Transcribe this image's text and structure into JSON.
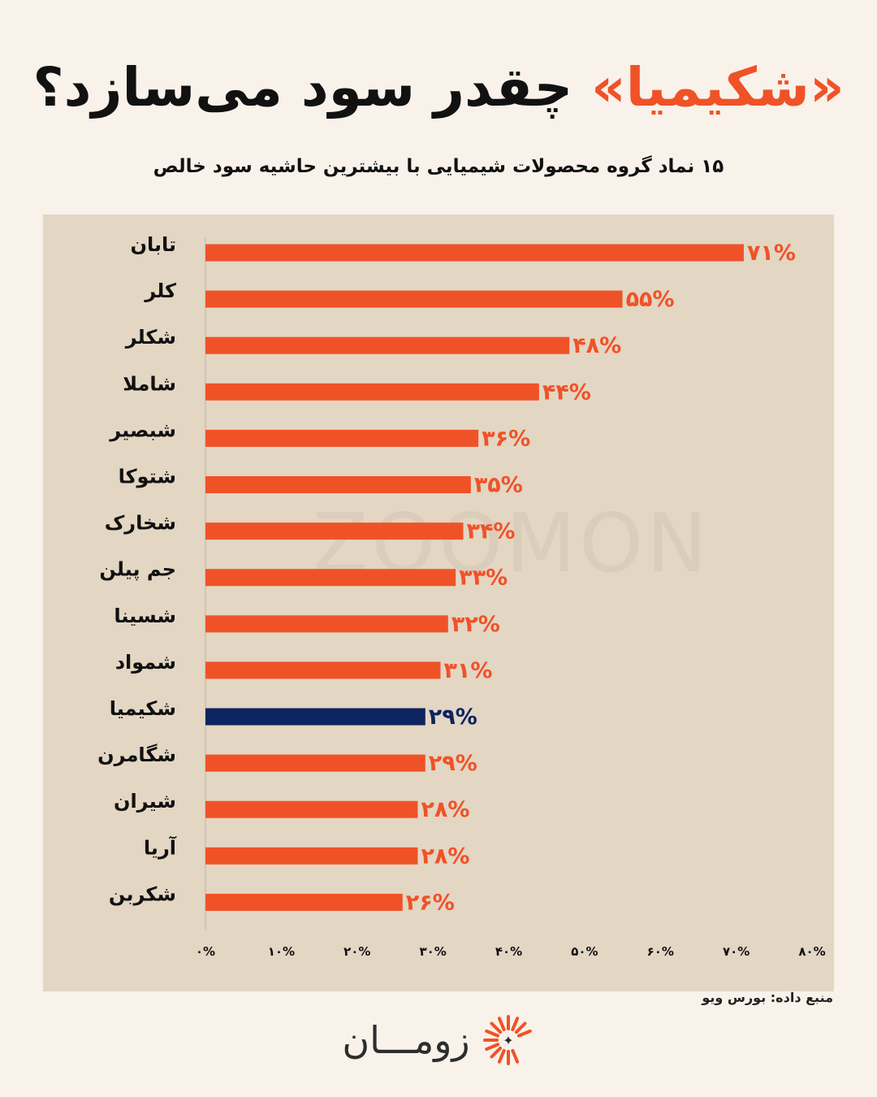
{
  "header": {
    "title_highlight": "«شکیمیا»",
    "title_rest": " چقدر سود می‌سازد؟",
    "subtitle": "۱۵ نماد گروه محصولات شیمیایی با بیشترین حاشیه سود خالص"
  },
  "watermark": "ZOOMON",
  "colors": {
    "bar": "#f05228",
    "highlight": "#0e2460",
    "background": "#f8f2ea",
    "panel": "#e3d6c3"
  },
  "chart_data": {
    "type": "bar",
    "orientation": "horizontal",
    "categories": [
      "تابان",
      "کلر",
      "شکلر",
      "شاملا",
      "شبصیر",
      "شتوکا",
      "شخارک",
      "جم پیلن",
      "شسینا",
      "شمواد",
      "شکیمیا",
      "شگامرن",
      "شیران",
      "آریا",
      "شکربن"
    ],
    "values": [
      71,
      55,
      48,
      44,
      36,
      35,
      34,
      33,
      32,
      31,
      29,
      29,
      28,
      28,
      26
    ],
    "value_labels": [
      "۷۱%",
      "۵۵%",
      "۴۸%",
      "۴۴%",
      "۳۶%",
      "۳۵%",
      "۳۴%",
      "۳۳%",
      "۳۲%",
      "۳۱%",
      "۲۹%",
      "۲۹%",
      "۲۸%",
      "۲۸%",
      "۲۶%"
    ],
    "highlight_category": "شکیمیا",
    "xlim": [
      0,
      80
    ],
    "xticks": [
      0,
      10,
      20,
      30,
      40,
      50,
      60,
      70,
      80
    ],
    "xtick_labels": [
      "۰%",
      "۱۰%",
      "۲۰%",
      "۳۰%",
      "۴۰%",
      "۵۰%",
      "۶۰%",
      "۷۰%",
      "۸۰%"
    ],
    "grid": false
  },
  "footer": {
    "source": "منبع داده: بورس ویو",
    "logo_text": "زومـــان",
    "logo_icon": "sunburst-icon"
  }
}
